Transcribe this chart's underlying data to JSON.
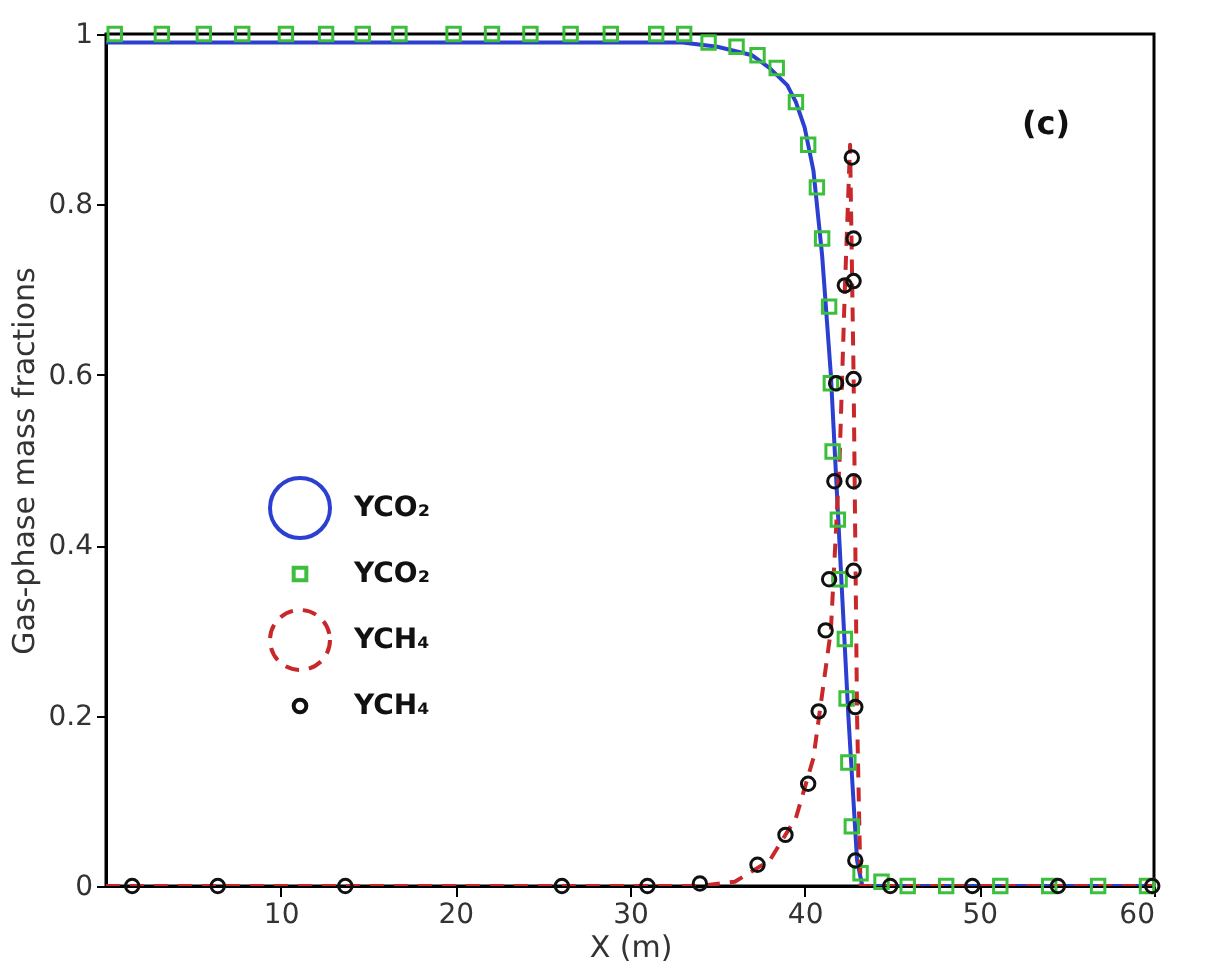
{
  "chart_data": {
    "type": "line",
    "xlabel": "X (m)",
    "ylabel": "Gas-phase mass fractions",
    "annotations": [
      "(c)"
    ],
    "xlim": [
      0,
      60
    ],
    "xticks": [
      10,
      20,
      30,
      40,
      50,
      60
    ],
    "ylim": [
      0,
      1
    ],
    "yticks": [
      0,
      0.2,
      0.4,
      0.6,
      0.8,
      1
    ],
    "grid": false,
    "legend": "left",
    "series": [
      {
        "name": "YCO₂",
        "type": "line",
        "color": "#2b3fd0",
        "line_style": "solid",
        "x": [
          0,
          10,
          20,
          30,
          33,
          35,
          37,
          38,
          39,
          39.5,
          40,
          40.5,
          41,
          41.5,
          42,
          42.5,
          43,
          43.3,
          45,
          50,
          60
        ],
        "values": [
          0.99,
          0.99,
          0.99,
          0.99,
          0.99,
          0.985,
          0.975,
          0.96,
          0.94,
          0.92,
          0.89,
          0.84,
          0.74,
          0.6,
          0.4,
          0.2,
          0.03,
          0,
          0,
          0,
          0
        ]
      },
      {
        "name": "YCO₂",
        "type": "scatter",
        "marker": "square",
        "color": "#3cbf3c",
        "x": [
          0.5,
          3.2,
          5.6,
          7.8,
          10.3,
          12.6,
          14.7,
          16.8,
          19.9,
          22.1,
          24.3,
          26.6,
          28.9,
          31.5,
          33.1,
          34.5,
          36.1,
          37.3,
          38.4,
          39.5,
          40.2,
          40.7,
          41.0,
          41.4,
          41.5,
          41.6,
          41.9,
          42.0,
          42.3,
          42.4,
          42.5,
          42.7,
          43.2,
          44.4,
          45.9,
          48.1,
          51.2,
          54.0,
          56.8,
          59.6
        ],
        "values": [
          1,
          1,
          1,
          1,
          1,
          1,
          1,
          1,
          1,
          1,
          1,
          1,
          1,
          1,
          1,
          0.99,
          0.985,
          0.975,
          0.96,
          0.92,
          0.87,
          0.82,
          0.76,
          0.68,
          0.59,
          0.51,
          0.43,
          0.36,
          0.29,
          0.22,
          0.145,
          0.07,
          0.015,
          0.005,
          0,
          0,
          0,
          0,
          0,
          0
        ]
      },
      {
        "name": "YCH₄",
        "type": "line",
        "color": "#c8282a",
        "line_style": "dashed",
        "x": [
          0,
          30,
          34,
          36,
          38,
          39.5,
          40.5,
          41.5,
          42,
          42.3,
          42.6,
          42.8,
          43.0,
          43.2,
          45,
          60
        ],
        "values": [
          0,
          0,
          0,
          0.005,
          0.03,
          0.08,
          0.15,
          0.3,
          0.5,
          0.7,
          0.87,
          0.6,
          0.2,
          0,
          0,
          0
        ]
      },
      {
        "name": "YCH₄",
        "type": "scatter",
        "marker": "circle",
        "color": "#111111",
        "x": [
          1.5,
          6.4,
          13.7,
          26.1,
          31.0,
          34.0,
          37.3,
          38.9,
          40.2,
          40.8,
          41.2,
          41.4,
          41.7,
          41.8,
          42.3,
          42.7,
          42.8,
          42.8,
          42.8,
          42.8,
          42.8,
          42.9,
          42.9,
          44.9,
          49.6,
          54.5,
          59.9
        ],
        "values": [
          0,
          0,
          0,
          0,
          0,
          0.003,
          0.025,
          0.06,
          0.12,
          0.205,
          0.3,
          0.36,
          0.475,
          0.59,
          0.705,
          0.855,
          0.76,
          0.71,
          0.595,
          0.475,
          0.37,
          0.21,
          0.03,
          0,
          0,
          0,
          0
        ]
      }
    ]
  }
}
